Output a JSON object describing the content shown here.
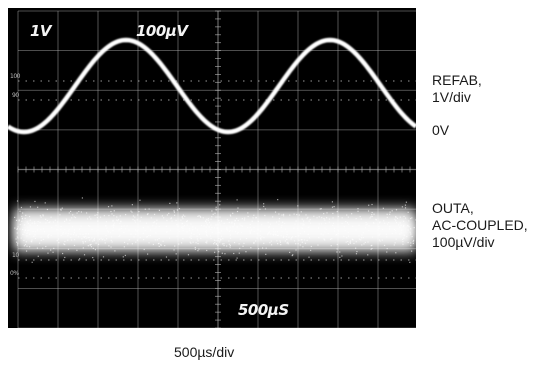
{
  "scope": {
    "ch1_scale_text": "1V",
    "ch2_scale_text": "100µV",
    "timebase_text": "500µS",
    "left_marks": [
      "100",
      "90",
      "10",
      "0%"
    ]
  },
  "labels": {
    "refab": [
      "REFAB,",
      "1V/div"
    ],
    "zero": "0V",
    "outa": [
      "OUTA,",
      "AC-COUPLED,",
      "100µV/div"
    ],
    "time_per_div": "500µs/div"
  },
  "colors": {
    "screen": "#000000",
    "trace": "#ffffff",
    "grid": "#bdbdbd"
  }
}
